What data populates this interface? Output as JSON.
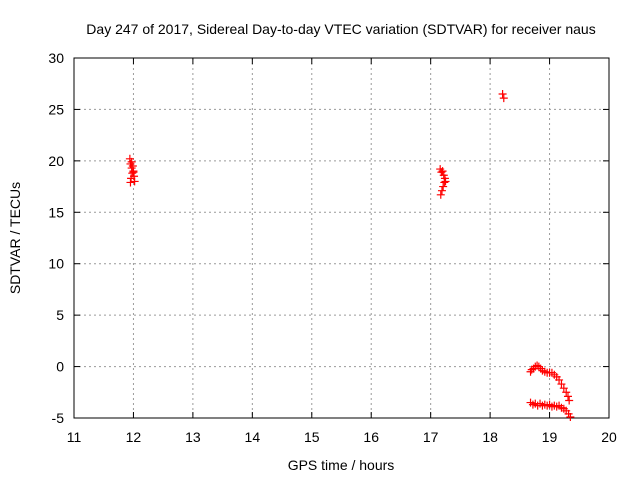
{
  "chart_data": {
    "type": "scatter",
    "title": "Day 247 of 2017, Sidereal Day-to-day VTEC variation (SDTVAR) for receiver naus",
    "xlabel": "GPS time / hours",
    "ylabel": "SDTVAR / TECUs",
    "xlim": [
      11,
      20
    ],
    "ylim": [
      -5,
      30
    ],
    "xticks": [
      11,
      12,
      13,
      14,
      15,
      16,
      17,
      18,
      19,
      20
    ],
    "yticks": [
      -5,
      0,
      5,
      10,
      15,
      20,
      25,
      30
    ],
    "grid": true,
    "marker": "+",
    "color": "#ff0000",
    "series": [
      {
        "name": "SDTVAR",
        "points": [
          [
            11.94,
            20.2
          ],
          [
            11.95,
            19.7
          ],
          [
            11.97,
            19.3
          ],
          [
            11.98,
            18.8
          ],
          [
            11.99,
            19.5
          ],
          [
            12.0,
            19.0
          ],
          [
            12.01,
            18.5
          ],
          [
            11.96,
            18.3
          ],
          [
            11.95,
            17.9
          ],
          [
            12.02,
            18.0
          ],
          [
            12.0,
            18.9
          ],
          [
            11.97,
            19.9
          ],
          [
            17.16,
            19.2
          ],
          [
            17.18,
            18.9
          ],
          [
            17.2,
            19.0
          ],
          [
            17.22,
            18.6
          ],
          [
            17.24,
            18.3
          ],
          [
            17.23,
            17.9
          ],
          [
            17.21,
            17.5
          ],
          [
            17.19,
            17.1
          ],
          [
            17.17,
            16.7
          ],
          [
            17.25,
            18.0
          ],
          [
            18.21,
            26.5
          ],
          [
            18.23,
            26.1
          ],
          [
            18.68,
            -0.5
          ],
          [
            18.7,
            -0.3
          ],
          [
            18.73,
            -0.2
          ],
          [
            18.76,
            0.0
          ],
          [
            18.79,
            0.1
          ],
          [
            18.82,
            0.0
          ],
          [
            18.85,
            -0.2
          ],
          [
            18.88,
            -0.4
          ],
          [
            18.92,
            -0.5
          ],
          [
            18.96,
            -0.6
          ],
          [
            19.0,
            -0.6
          ],
          [
            19.04,
            -0.6
          ],
          [
            19.08,
            -0.8
          ],
          [
            19.12,
            -1.0
          ],
          [
            19.16,
            -1.3
          ],
          [
            19.2,
            -1.7
          ],
          [
            19.24,
            -2.1
          ],
          [
            19.28,
            -2.5
          ],
          [
            19.31,
            -2.9
          ],
          [
            19.33,
            -3.3
          ],
          [
            18.68,
            -3.5
          ],
          [
            18.72,
            -3.7
          ],
          [
            18.76,
            -3.6
          ],
          [
            18.8,
            -3.8
          ],
          [
            18.84,
            -3.6
          ],
          [
            18.88,
            -3.8
          ],
          [
            18.92,
            -3.7
          ],
          [
            18.96,
            -3.8
          ],
          [
            19.0,
            -3.7
          ],
          [
            19.04,
            -3.9
          ],
          [
            19.08,
            -3.8
          ],
          [
            19.12,
            -3.9
          ],
          [
            19.16,
            -3.8
          ],
          [
            19.2,
            -4.0
          ],
          [
            19.24,
            -4.1
          ],
          [
            19.28,
            -4.3
          ],
          [
            19.32,
            -4.6
          ],
          [
            19.35,
            -4.9
          ]
        ]
      }
    ]
  }
}
